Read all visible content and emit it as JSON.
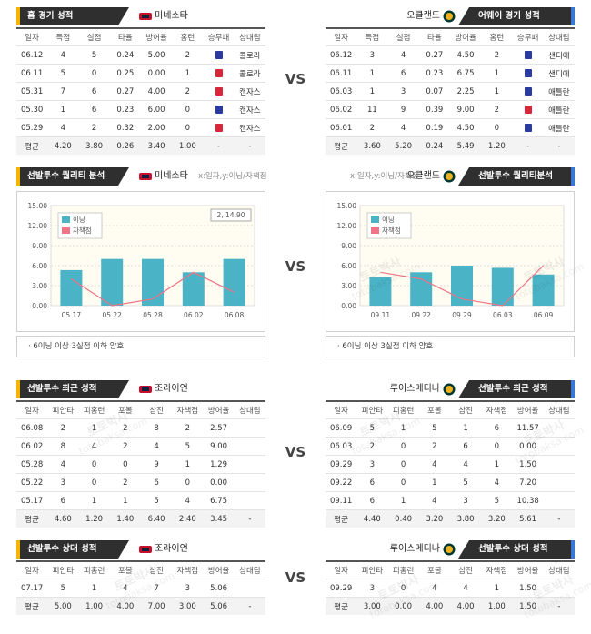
{
  "vs": "VS",
  "watermark": [
    "토토박사",
    "totobaksa.com"
  ],
  "home_away": {
    "left": {
      "title": "홈 경기 성적",
      "team": "미네소타",
      "columns": [
        "일자",
        "득점",
        "실점",
        "타율",
        "방어율",
        "홈런",
        "승무패",
        "상대팀"
      ],
      "rows": [
        [
          "06.12",
          "4",
          "5",
          "0.24",
          "5.00",
          "2",
          "콜로라"
        ],
        [
          "06.11",
          "5",
          "0",
          "0.25",
          "0.00",
          "1",
          "콜로라"
        ],
        [
          "05.31",
          "7",
          "6",
          "0.27",
          "4.00",
          "2",
          "캔자스"
        ],
        [
          "05.30",
          "1",
          "6",
          "0.23",
          "6.00",
          "0",
          "캔자스"
        ],
        [
          "05.29",
          "4",
          "2",
          "0.32",
          "2.00",
          "0",
          "캔자스"
        ]
      ],
      "result_colors": [
        "#2b3aa0",
        "#d9263a",
        "#d9263a",
        "#2b3aa0",
        "#d9263a"
      ],
      "average": [
        "평균",
        "4.20",
        "3.80",
        "0.26",
        "3.40",
        "1.00",
        "-",
        "-"
      ]
    },
    "right": {
      "title": "어웨이 경기 성적",
      "team": "오클랜드",
      "columns": [
        "일자",
        "득점",
        "실점",
        "타율",
        "방어율",
        "홈런",
        "승무패",
        "상대팀"
      ],
      "rows": [
        [
          "06.12",
          "3",
          "4",
          "0.27",
          "4.50",
          "2",
          "샌디에"
        ],
        [
          "06.11",
          "1",
          "6",
          "0.23",
          "6.75",
          "1",
          "샌디에"
        ],
        [
          "06.03",
          "1",
          "3",
          "0.07",
          "2.25",
          "1",
          "애틀란"
        ],
        [
          "06.02",
          "11",
          "9",
          "0.39",
          "9.00",
          "2",
          "애틀란"
        ],
        [
          "06.01",
          "2",
          "4",
          "0.19",
          "4.50",
          "0",
          "애틀란"
        ]
      ],
      "result_colors": [
        "#2b3aa0",
        "#2b3aa0",
        "#2b3aa0",
        "#d9263a",
        "#2b3aa0"
      ],
      "average": [
        "평균",
        "3.60",
        "5.20",
        "0.24",
        "5.49",
        "1.20",
        "-",
        "-"
      ]
    }
  },
  "quality": {
    "left": {
      "title": "선발투수 퀄리티 분석",
      "team": "미네소타",
      "axis_note": "x:일자,y:이닝/자책점",
      "note": "· 6이닝 이상 3실점 이하 양호"
    },
    "right": {
      "title": "선발투수 퀄리티분석",
      "team": "오클랜드",
      "axis_note": "x:일자,y:이닝/자책점",
      "note": "· 6이닝 이상 3실점 이하 양호"
    }
  },
  "chart_data": [
    {
      "type": "bar",
      "categories": [
        "05.17",
        "05.22",
        "05.28",
        "06.02",
        "06.08"
      ],
      "series": [
        {
          "name": "이닝",
          "color": "#4ab3c6",
          "values": [
            5.33,
            7,
            7,
            5,
            7
          ]
        },
        {
          "name": "자책점",
          "type": "line",
          "color": "#f07386",
          "values": [
            4,
            0,
            1,
            5,
            2
          ]
        }
      ],
      "ylim": [
        0,
        15
      ],
      "yticks": [
        {
          "value": 0,
          "label": "0.00"
        },
        {
          "value": 3,
          "label": "3.00"
        },
        {
          "value": 6,
          "label": "6.00"
        },
        {
          "value": 9,
          "label": "9.00"
        },
        {
          "value": 12,
          "label": "12.00"
        },
        {
          "value": 15,
          "label": "15.00"
        }
      ],
      "grid": true,
      "annotation": "2, 14.90"
    },
    {
      "type": "bar",
      "categories": [
        "09.11",
        "09.22",
        "09.29",
        "06.03",
        "06.09"
      ],
      "series": [
        {
          "name": "이닝",
          "color": "#4ab3c6",
          "values": [
            4.33,
            5,
            6,
            5.67,
            4.67
          ]
        },
        {
          "name": "자책점",
          "type": "line",
          "color": "#f07386",
          "values": [
            5,
            4,
            1,
            0,
            6
          ]
        }
      ],
      "ylim": [
        0,
        15
      ],
      "yticks": [
        {
          "value": 0,
          "label": "0.00"
        },
        {
          "value": 3,
          "label": "3.00"
        },
        {
          "value": 6,
          "label": "6.00"
        },
        {
          "value": 9,
          "label": "9.00"
        },
        {
          "value": 12,
          "label": "12.00"
        },
        {
          "value": 15,
          "label": "15.00"
        }
      ],
      "grid": true
    }
  ],
  "recent": {
    "left": {
      "title": "선발투수 최근 성적",
      "team": "조라이언",
      "columns": [
        "일자",
        "피안타",
        "피홈런",
        "포볼",
        "삼진",
        "자책점",
        "방어율",
        "상대팀"
      ],
      "rows": [
        [
          "06.08",
          "2",
          "1",
          "2",
          "8",
          "2",
          "2.57"
        ],
        [
          "06.02",
          "8",
          "4",
          "2",
          "4",
          "5",
          "9.00"
        ],
        [
          "05.28",
          "4",
          "0",
          "0",
          "9",
          "1",
          "1.29"
        ],
        [
          "05.22",
          "3",
          "0",
          "2",
          "6",
          "0",
          "0.00"
        ],
        [
          "05.17",
          "6",
          "1",
          "1",
          "5",
          "4",
          "6.75"
        ]
      ],
      "average": [
        "평균",
        "4.60",
        "1.20",
        "1.40",
        "6.40",
        "2.40",
        "3.45",
        "-"
      ]
    },
    "right": {
      "title": "선발투수 최근 성적",
      "team": "루이스메디나",
      "columns": [
        "일자",
        "피안타",
        "피홈런",
        "포볼",
        "삼진",
        "자책점",
        "방어율",
        "상대팀"
      ],
      "rows": [
        [
          "06.09",
          "5",
          "1",
          "5",
          "1",
          "6",
          "11.57"
        ],
        [
          "06.03",
          "2",
          "0",
          "2",
          "6",
          "0",
          "0.00"
        ],
        [
          "09.29",
          "3",
          "0",
          "4",
          "4",
          "1",
          "1.50"
        ],
        [
          "09.22",
          "6",
          "0",
          "1",
          "5",
          "4",
          "7.20"
        ],
        [
          "09.11",
          "6",
          "1",
          "4",
          "3",
          "5",
          "10.38"
        ]
      ],
      "average": [
        "평균",
        "4.40",
        "0.40",
        "3.20",
        "3.80",
        "3.20",
        "5.61",
        "-"
      ]
    }
  },
  "versus": {
    "left": {
      "title": "선발투수 상대 성적",
      "team": "조라이언",
      "columns": [
        "일자",
        "피안타",
        "피홈런",
        "포볼",
        "삼진",
        "자책점",
        "방어율",
        "상대팀"
      ],
      "rows": [
        [
          "07.17",
          "5",
          "1",
          "4",
          "7",
          "3",
          "5.06"
        ]
      ],
      "average": [
        "평균",
        "5.00",
        "1.00",
        "4.00",
        "7.00",
        "3.00",
        "5.06",
        "-"
      ]
    },
    "right": {
      "title": "선발투수 상대 성적",
      "team": "루이스메디나",
      "columns": [
        "일자",
        "피안타",
        "피홈런",
        "포볼",
        "삼진",
        "자책점",
        "방어율",
        "상대팀"
      ],
      "rows": [
        [
          "09.29",
          "3",
          "0",
          "4",
          "4",
          "1",
          "1.50"
        ]
      ],
      "average": [
        "평균",
        "3.00",
        "0.00",
        "4.00",
        "4.00",
        "1.00",
        "1.50",
        "-"
      ]
    }
  }
}
